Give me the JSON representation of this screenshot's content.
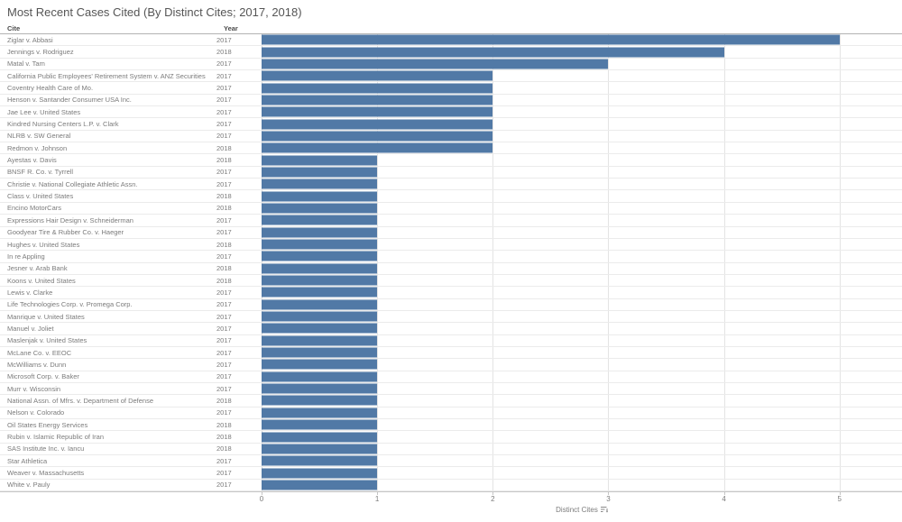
{
  "title": "Most Recent Cases Cited (By Distinct Cites; 2017, 2018)",
  "columns": {
    "cite": "Cite",
    "year": "Year"
  },
  "axis": {
    "title": "Distinct Cites"
  },
  "colors": {
    "bar": "#5179a6",
    "title_text": "#555555",
    "header_text": "#4a4a4a",
    "row_text": "#7b7b7b",
    "gridline": "#e4e4e4",
    "row_border": "#ebebeb",
    "axis_line": "#c6c6c6"
  },
  "chart_data": {
    "type": "bar",
    "orientation": "horizontal",
    "title": "Most Recent Cases Cited (By Distinct Cites; 2017, 2018)",
    "xlabel": "Distinct Cites",
    "ylabel": "",
    "xlim": [
      0,
      5.54
    ],
    "xticks": [
      0,
      1,
      2,
      3,
      4,
      5
    ],
    "grid": "vertical",
    "legend": "none",
    "rows": [
      {
        "cite": "Ziglar v. Abbasi",
        "year": "2017",
        "value": 5
      },
      {
        "cite": "Jennings v. Rodriguez",
        "year": "2018",
        "value": 4
      },
      {
        "cite": "Matal v. Tam",
        "year": "2017",
        "value": 3
      },
      {
        "cite": "California Public Employees' Retirement System v. ANZ Securities",
        "year": "2017",
        "value": 2
      },
      {
        "cite": "Coventry Health Care of Mo.",
        "year": "2017",
        "value": 2
      },
      {
        "cite": "Henson v. Santander Consumer USA Inc.",
        "year": "2017",
        "value": 2
      },
      {
        "cite": "Jae Lee v. United States",
        "year": "2017",
        "value": 2
      },
      {
        "cite": "Kindred Nursing Centers L.P. v. Clark",
        "year": "2017",
        "value": 2
      },
      {
        "cite": "NLRB v. SW General",
        "year": "2017",
        "value": 2
      },
      {
        "cite": "Redmon v. Johnson",
        "year": "2018",
        "value": 2
      },
      {
        "cite": "Ayestas v. Davis",
        "year": "2018",
        "value": 1
      },
      {
        "cite": "BNSF R. Co. v. Tyrrell",
        "year": "2017",
        "value": 1
      },
      {
        "cite": "Christie v. National Collegiate Athletic Assn.",
        "year": "2017",
        "value": 1
      },
      {
        "cite": "Class v. United States",
        "year": "2018",
        "value": 1
      },
      {
        "cite": "Encino MotorCars",
        "year": "2018",
        "value": 1
      },
      {
        "cite": "Expressions Hair Design v. Schneiderman",
        "year": "2017",
        "value": 1
      },
      {
        "cite": "Goodyear Tire & Rubber Co. v. Haeger",
        "year": "2017",
        "value": 1
      },
      {
        "cite": "Hughes v. United States",
        "year": "2018",
        "value": 1
      },
      {
        "cite": "In re Appling",
        "year": "2017",
        "value": 1
      },
      {
        "cite": "Jesner v. Arab Bank",
        "year": "2018",
        "value": 1
      },
      {
        "cite": "Koons v. United States",
        "year": "2018",
        "value": 1
      },
      {
        "cite": "Lewis v. Clarke",
        "year": "2017",
        "value": 1
      },
      {
        "cite": "Life Technologies Corp. v. Promega Corp.",
        "year": "2017",
        "value": 1
      },
      {
        "cite": "Manrique v. United States",
        "year": "2017",
        "value": 1
      },
      {
        "cite": "Manuel v. Joliet",
        "year": "2017",
        "value": 1
      },
      {
        "cite": "Maslenjak v. United States",
        "year": "2017",
        "value": 1
      },
      {
        "cite": "McLane Co. v. EEOC",
        "year": "2017",
        "value": 1
      },
      {
        "cite": "McWilliams v. Dunn",
        "year": "2017",
        "value": 1
      },
      {
        "cite": "Microsoft Corp. v. Baker",
        "year": "2017",
        "value": 1
      },
      {
        "cite": "Murr v. Wisconsin",
        "year": "2017",
        "value": 1
      },
      {
        "cite": "National Assn. of Mfrs. v. Department of Defense",
        "year": "2018",
        "value": 1
      },
      {
        "cite": "Nelson v. Colorado",
        "year": "2017",
        "value": 1
      },
      {
        "cite": "Oil States Energy Services",
        "year": "2018",
        "value": 1
      },
      {
        "cite": "Rubin v. Islamic Republic of Iran",
        "year": "2018",
        "value": 1
      },
      {
        "cite": "SAS Institute Inc. v. Iancu",
        "year": "2018",
        "value": 1
      },
      {
        "cite": "Star Athletica",
        "year": "2017",
        "value": 1
      },
      {
        "cite": "Weaver v. Massachusetts",
        "year": "2017",
        "value": 1
      },
      {
        "cite": "White v. Pauly",
        "year": "2017",
        "value": 1
      }
    ]
  }
}
